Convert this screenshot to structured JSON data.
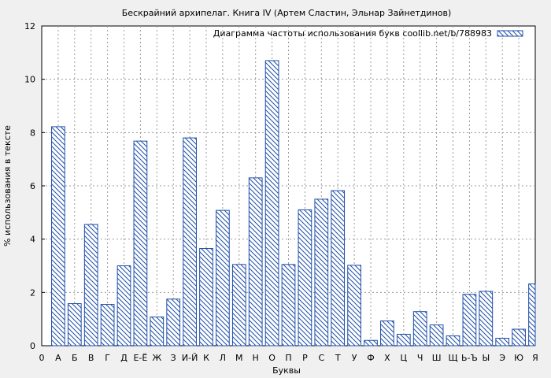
{
  "chart_data": {
    "type": "bar",
    "title": "Бескрайний архипелаг. Книга IV (Артем Сластин, Эльнар Зайнетдинов)",
    "xlabel": "Буквы",
    "ylabel": "% использования в тексте",
    "ylim": [
      0,
      12
    ],
    "yticks": [
      0,
      2,
      4,
      6,
      8,
      10,
      12
    ],
    "grid": true,
    "legend_position": "top-right",
    "categories": [
      "А",
      "Б",
      "В",
      "Г",
      "Д",
      "Е-Ё",
      "Ж",
      "З",
      "И-Й",
      "К",
      "Л",
      "М",
      "Н",
      "О",
      "П",
      "Р",
      "С",
      "Т",
      "У",
      "Ф",
      "Х",
      "Ц",
      "Ч",
      "Ш",
      "Щ",
      "Ь-Ъ",
      "Ы",
      "Э",
      "Ю",
      "Я"
    ],
    "x_tick_labels": [
      "0",
      "А",
      "Б",
      "В",
      "Г",
      "Д",
      "Е-Ё",
      "Ж",
      "З",
      "И-Й",
      "К",
      "Л",
      "М",
      "Н",
      "О",
      "П",
      "Р",
      "С",
      "Т",
      "У",
      "Ф",
      "Х",
      "Ц",
      "Ч",
      "Ш",
      "Щ",
      "Ь-Ъ",
      "Ы",
      "Э",
      "Ю",
      "Я"
    ],
    "series": [
      {
        "name": "Диаграмма частоты использования букв coollib.net/b/788983",
        "color": "#1f4fa8",
        "values": [
          8.22,
          1.58,
          4.55,
          1.55,
          3.0,
          7.68,
          1.08,
          1.75,
          7.8,
          3.65,
          5.08,
          3.05,
          6.3,
          10.7,
          3.05,
          5.1,
          5.5,
          5.82,
          3.02,
          0.2,
          0.93,
          0.43,
          1.28,
          0.78,
          0.37,
          1.93,
          2.04,
          0.28,
          0.62,
          2.32
        ]
      }
    ]
  }
}
